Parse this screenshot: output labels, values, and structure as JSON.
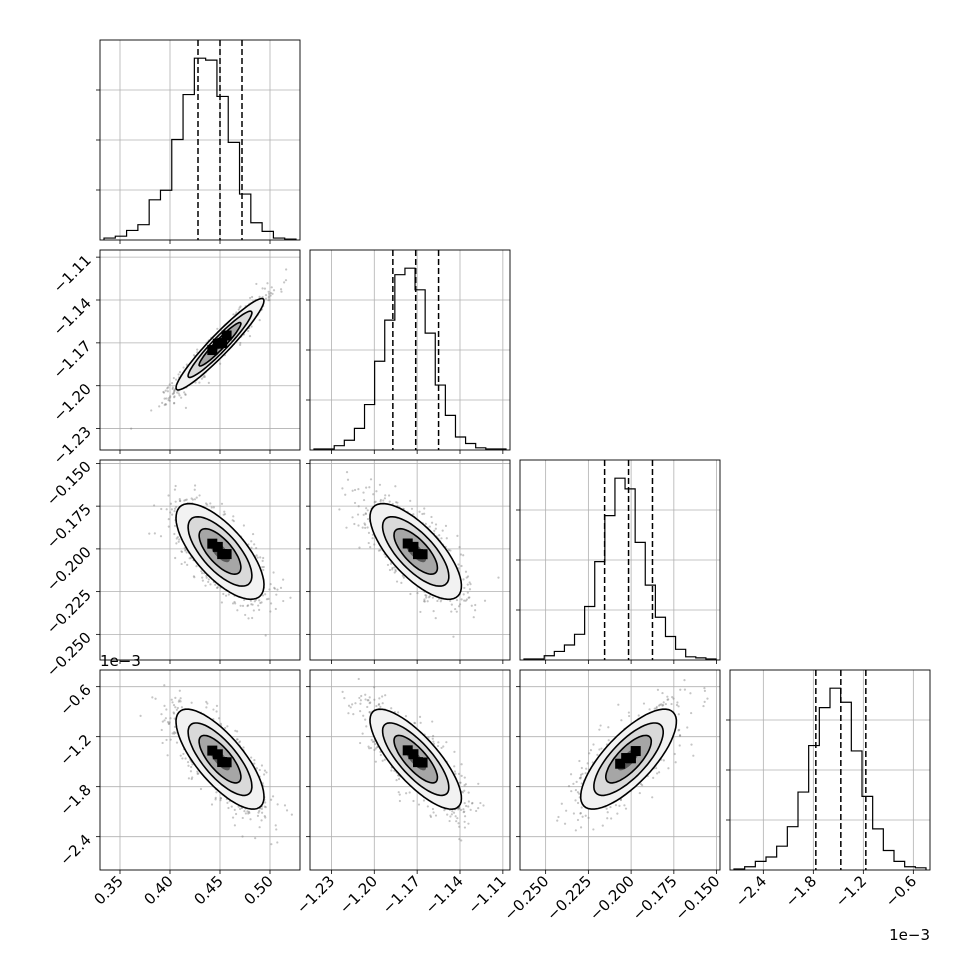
{
  "chart_data": {
    "type": "corner",
    "title": "",
    "params": [
      {
        "name": "",
        "range": [
          0.33,
          0.53
        ],
        "ticks": [
          0.35,
          0.4,
          0.45,
          0.5
        ],
        "tick_labels": [
          "0.35",
          "0.40",
          "0.45",
          "0.50"
        ],
        "quantiles": [
          0.428,
          0.45,
          0.472
        ],
        "offset_label": ""
      },
      {
        "name": "",
        "range": [
          -1.245,
          -1.105
        ],
        "ticks": [
          -1.23,
          -1.2,
          -1.17,
          -1.14,
          -1.11
        ],
        "tick_labels": [
          "−1.23",
          "−1.20",
          "−1.17",
          "−1.14",
          "−1.11"
        ],
        "quantiles": [
          -1.187,
          -1.171,
          -1.155
        ],
        "offset_label": ""
      },
      {
        "name": "",
        "range": [
          -0.265,
          -0.148
        ],
        "ticks": [
          -0.25,
          -0.225,
          -0.2,
          -0.175,
          -0.15
        ],
        "tick_labels": [
          "−0.250",
          "−0.225",
          "−0.200",
          "−0.175",
          "−0.150"
        ],
        "quantiles": [
          -0.2155,
          -0.2015,
          -0.1875
        ],
        "offset_label": ""
      },
      {
        "name": "",
        "range": [
          -2.8,
          -0.4
        ],
        "ticks": [
          -2.4,
          -1.8,
          -1.2,
          -0.6
        ],
        "tick_labels": [
          "−2.4",
          "−1.8",
          "−1.2",
          "−0.6"
        ],
        "quantiles": [
          -1.77,
          -1.47,
          -1.17
        ],
        "offset_label": "1e−3"
      }
    ],
    "histograms": [
      [
        2,
        4,
        10,
        16,
        42,
        52,
        105,
        152,
        190,
        188,
        150,
        102,
        48,
        18,
        9,
        2,
        1
      ],
      [
        1,
        1,
        4,
        9,
        20,
        42,
        82,
        120,
        162,
        168,
        148,
        108,
        60,
        32,
        12,
        6,
        2,
        1,
        1
      ],
      [
        1,
        1,
        4,
        8,
        14,
        24,
        50,
        92,
        135,
        170,
        160,
        110,
        70,
        40,
        22,
        10,
        3,
        2,
        1
      ],
      [
        1,
        3,
        8,
        12,
        22,
        40,
        72,
        115,
        150,
        168,
        155,
        110,
        68,
        38,
        18,
        8,
        3,
        2
      ]
    ],
    "correlations": [
      [
        1,
        0.95,
        -0.7,
        -0.75
      ],
      [
        0.95,
        1,
        -0.72,
        -0.78
      ],
      [
        -0.7,
        -0.72,
        1,
        0.75
      ],
      [
        -0.75,
        -0.78,
        0.75,
        1
      ]
    ],
    "grid": true
  }
}
